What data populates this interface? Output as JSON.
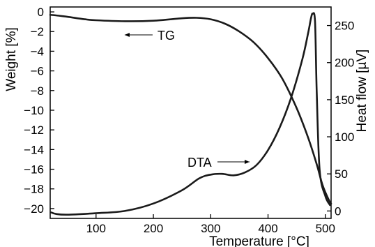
{
  "chart_data": {
    "type": "line",
    "xlabel": "Temperature [°C]",
    "ylabel_left": "Weight [%]",
    "ylabel_right": "Heat flow [µV]",
    "xlim": [
      20,
      510
    ],
    "ylim_left": [
      -21,
      0.5
    ],
    "ylim_right": [
      -10,
      275
    ],
    "x_ticks": [
      "100",
      "200",
      "300",
      "400",
      "500"
    ],
    "y_left_ticks": [
      "0",
      "−2",
      "−4",
      "−6",
      "−8",
      "−10",
      "−12",
      "−14",
      "−16",
      "−18",
      "−20"
    ],
    "y_right_ticks": [
      "0",
      "50",
      "100",
      "150",
      "200",
      "250"
    ],
    "grid": false,
    "legend": "none",
    "line_color": "#1a1a1a",
    "annotations": [
      {
        "text": "TG",
        "arrow_to_x": 150,
        "series": "TG"
      },
      {
        "text": "DTA",
        "arrow_to_x": 375,
        "series": "DTA"
      }
    ],
    "series": [
      {
        "axis": "left",
        "x": [
          20,
          30,
          50,
          80,
          100,
          150,
          200,
          250,
          275,
          300,
          325,
          350,
          375,
          400,
          425,
          450,
          470,
          485,
          495,
          505,
          510
        ],
        "y": [
          -0.3,
          -0.35,
          -0.5,
          -0.75,
          -0.85,
          -0.95,
          -0.9,
          -0.65,
          -0.6,
          -0.75,
          -1.2,
          -2.0,
          -3.1,
          -4.7,
          -6.8,
          -9.8,
          -12.8,
          -15.5,
          -17.6,
          -19.0,
          -19.5
        ]
      },
      {
        "axis": "right",
        "x": [
          22,
          30,
          50,
          100,
          150,
          200,
          250,
          280,
          300,
          320,
          340,
          360,
          380,
          400,
          420,
          440,
          460,
          470,
          475,
          478,
          482,
          485,
          490,
          500,
          508
        ],
        "y": [
          -2,
          -4,
          -5,
          -3,
          0,
          10,
          28,
          44,
          49,
          50,
          48,
          52,
          62,
          82,
          112,
          152,
          205,
          240,
          260,
          266,
          255,
          160,
          55,
          20,
          8
        ]
      }
    ]
  }
}
